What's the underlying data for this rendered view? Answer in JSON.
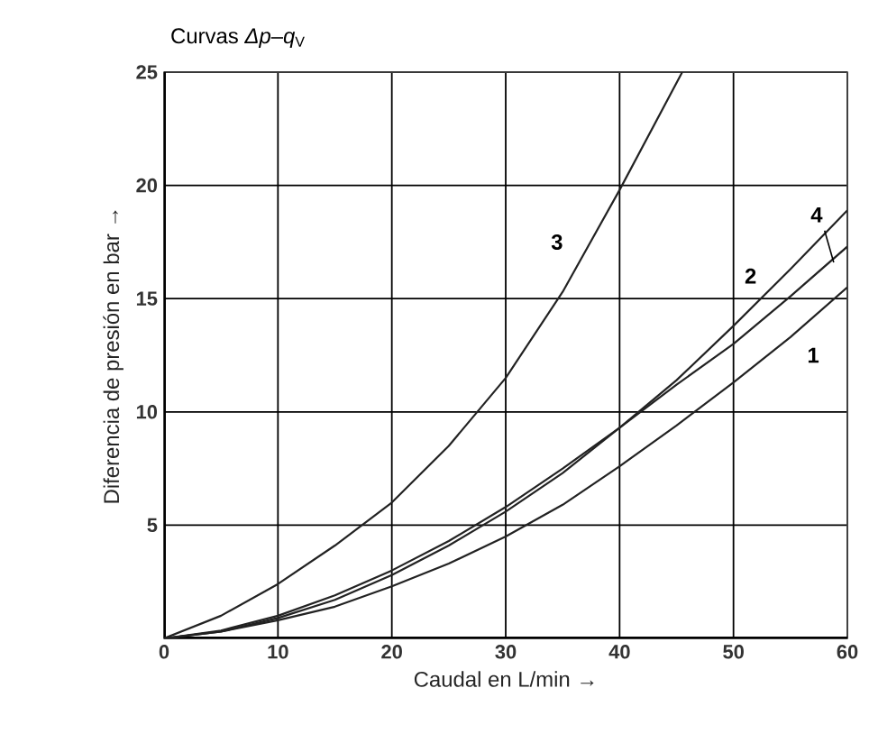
{
  "chart_data": {
    "type": "line",
    "title": "Curvas *Δp*–*q*$_{V}$",
    "xlabel": "Caudal en L/min →",
    "ylabel": "Diferencia de presión en bar →",
    "x": [
      0,
      5,
      10,
      15,
      20,
      25,
      30,
      35,
      40,
      45,
      50,
      55,
      60
    ],
    "series": [
      {
        "name": "1",
        "color": "#222222",
        "values": [
          0,
          0.3,
          0.8,
          1.4,
          2.3,
          3.3,
          4.5,
          5.9,
          7.6,
          9.4,
          11.3,
          13.3,
          15.5
        ]
      },
      {
        "name": "2",
        "color": "#222222",
        "values": [
          0,
          0.3,
          0.9,
          1.7,
          2.8,
          4.1,
          5.6,
          7.3,
          9.3,
          11.4,
          13.8,
          16.3,
          18.9
        ]
      },
      {
        "name": "3",
        "color": "#222222",
        "x": [
          0,
          5,
          10,
          15,
          20,
          25,
          30,
          35,
          40,
          45.5
        ],
        "values": [
          0,
          1,
          2.4,
          4.1,
          6,
          8.5,
          11.5,
          15.3,
          19.8,
          25
        ]
      },
      {
        "name": "4",
        "color": "#222222",
        "values": [
          0,
          0.35,
          1.0,
          1.9,
          3.0,
          4.3,
          5.8,
          7.5,
          9.3,
          11.2,
          13.0,
          15.1,
          17.3
        ]
      }
    ],
    "xlim": [
      0,
      60
    ],
    "ylim": [
      0,
      25
    ],
    "xticks": [
      0,
      10,
      20,
      30,
      40,
      50,
      60
    ],
    "yticks": [
      {
        "value": 0,
        "label": null
      },
      5,
      10,
      15,
      20,
      25
    ],
    "grid": true,
    "legend": false,
    "marker": "none",
    "line_style": "solid"
  }
}
